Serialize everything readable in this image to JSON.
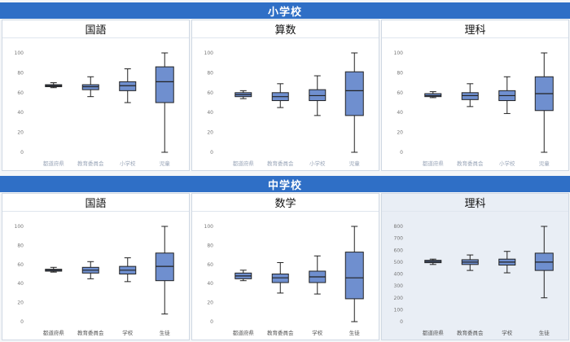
{
  "sections": [
    {
      "title": "小学校"
    },
    {
      "title": "中学校"
    }
  ],
  "colors": {
    "band": "#2f6fc6",
    "box_fill": "#6f8fcf",
    "box_stroke": "#222222"
  },
  "chart_data": [
    {
      "type": "box",
      "title": "国語",
      "categories": [
        "都道府県",
        "教育委員会",
        "小学校",
        "児童"
      ],
      "ylim": [
        0,
        100
      ],
      "yticks": [
        0,
        20,
        40,
        60,
        80,
        100
      ],
      "boxes": [
        {
          "min": 65,
          "q1": 66,
          "median": 67,
          "q3": 68,
          "max": 70
        },
        {
          "min": 56,
          "q1": 63,
          "median": 66,
          "q3": 68,
          "max": 76
        },
        {
          "min": 50,
          "q1": 62,
          "median": 67,
          "q3": 71,
          "max": 84
        },
        {
          "min": 0,
          "q1": 50,
          "median": 71,
          "q3": 86,
          "max": 100
        }
      ]
    },
    {
      "type": "box",
      "title": "算数",
      "categories": [
        "都道府県",
        "教育委員会",
        "小学校",
        "児童"
      ],
      "ylim": [
        0,
        100
      ],
      "yticks": [
        0,
        20,
        40,
        60,
        80,
        100
      ],
      "boxes": [
        {
          "min": 54,
          "q1": 56,
          "median": 58,
          "q3": 60,
          "max": 62
        },
        {
          "min": 45,
          "q1": 52,
          "median": 56,
          "q3": 60,
          "max": 69
        },
        {
          "min": 37,
          "q1": 52,
          "median": 57,
          "q3": 63,
          "max": 77
        },
        {
          "min": 0,
          "q1": 37,
          "median": 62,
          "q3": 81,
          "max": 100
        }
      ]
    },
    {
      "type": "box",
      "title": "理科",
      "categories": [
        "都道府県",
        "教育委員会",
        "小学校",
        "児童"
      ],
      "ylim": [
        0,
        100
      ],
      "yticks": [
        0,
        20,
        40,
        60,
        80,
        100
      ],
      "boxes": [
        {
          "min": 55,
          "q1": 56,
          "median": 57,
          "q3": 59,
          "max": 61
        },
        {
          "min": 46,
          "q1": 53,
          "median": 57,
          "q3": 60,
          "max": 69
        },
        {
          "min": 39,
          "q1": 52,
          "median": 57,
          "q3": 62,
          "max": 76
        },
        {
          "min": 0,
          "q1": 42,
          "median": 59,
          "q3": 76,
          "max": 100
        }
      ]
    },
    {
      "type": "box",
      "title": "国語",
      "categories": [
        "都道府県",
        "教育委員会",
        "学校",
        "生徒"
      ],
      "ylim": [
        0,
        100
      ],
      "yticks": [
        0,
        20,
        40,
        60,
        80,
        100
      ],
      "boxes": [
        {
          "min": 52,
          "q1": 53,
          "median": 54,
          "q3": 55,
          "max": 57
        },
        {
          "min": 45,
          "q1": 51,
          "median": 54,
          "q3": 57,
          "max": 63
        },
        {
          "min": 42,
          "q1": 50,
          "median": 54,
          "q3": 58,
          "max": 67
        },
        {
          "min": 8,
          "q1": 43,
          "median": 58,
          "q3": 72,
          "max": 100
        }
      ]
    },
    {
      "type": "box",
      "title": "数学",
      "categories": [
        "都道府県",
        "教育委員会",
        "学校",
        "生徒"
      ],
      "ylim": [
        0,
        100
      ],
      "yticks": [
        0,
        20,
        40,
        60,
        80,
        100
      ],
      "boxes": [
        {
          "min": 43,
          "q1": 45,
          "median": 48,
          "q3": 51,
          "max": 54
        },
        {
          "min": 30,
          "q1": 41,
          "median": 46,
          "q3": 50,
          "max": 62
        },
        {
          "min": 29,
          "q1": 41,
          "median": 47,
          "q3": 53,
          "max": 69
        },
        {
          "min": 0,
          "q1": 24,
          "median": 46,
          "q3": 73,
          "max": 100
        }
      ]
    },
    {
      "type": "box",
      "title": "理科",
      "categories": [
        "都道府県",
        "教育委員会",
        "学校",
        "生徒"
      ],
      "ylim": [
        0,
        800
      ],
      "yticks": [
        0,
        100,
        200,
        300,
        400,
        500,
        600,
        700,
        800
      ],
      "boxes": [
        {
          "min": 480,
          "q1": 495,
          "median": 505,
          "q3": 515,
          "max": 525
        },
        {
          "min": 430,
          "q1": 480,
          "median": 500,
          "q3": 520,
          "max": 560
        },
        {
          "min": 410,
          "q1": 475,
          "median": 500,
          "q3": 525,
          "max": 590
        },
        {
          "min": 200,
          "q1": 430,
          "median": 500,
          "q3": 575,
          "max": 800
        }
      ]
    }
  ]
}
